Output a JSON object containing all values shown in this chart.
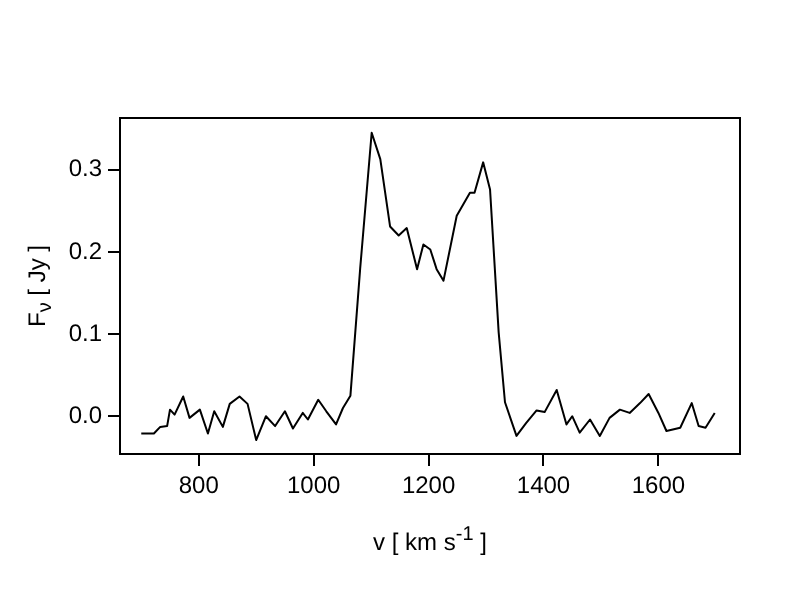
{
  "chart_data": {
    "type": "line",
    "xlabel": "v [ km s$^{-1}$ ]",
    "ylabel": "F$_{ν}$ [ Jy ]",
    "x": [
      700,
      722,
      733,
      745,
      750,
      758,
      773,
      784,
      802,
      816,
      827,
      842,
      854,
      871,
      885,
      900,
      917,
      933,
      950,
      964,
      981,
      990,
      1008,
      1022,
      1039,
      1051,
      1064,
      1081,
      1101,
      1116,
      1133,
      1148,
      1162,
      1180,
      1191,
      1203,
      1214,
      1226,
      1249,
      1272,
      1280,
      1295,
      1307,
      1322,
      1333,
      1353,
      1370,
      1388,
      1402,
      1423,
      1440,
      1450,
      1463,
      1481,
      1498,
      1515,
      1533,
      1550,
      1568,
      1583,
      1600,
      1614,
      1638,
      1658,
      1670,
      1682,
      1698
    ],
    "series": [
      {
        "color": "#000000",
        "values": [
          -0.021,
          -0.021,
          -0.013,
          -0.012,
          0.008,
          0.002,
          0.024,
          -0.002,
          0.008,
          -0.021,
          0.006,
          -0.013,
          0.015,
          0.024,
          0.015,
          -0.029,
          0.0,
          -0.012,
          0.006,
          -0.015,
          0.004,
          -0.004,
          0.02,
          0.006,
          -0.01,
          0.01,
          0.025,
          0.18,
          0.345,
          0.313,
          0.231,
          0.22,
          0.229,
          0.179,
          0.209,
          0.203,
          0.179,
          0.165,
          0.244,
          0.272,
          0.272,
          0.309,
          0.276,
          0.102,
          0.017,
          -0.024,
          -0.008,
          0.007,
          0.005,
          0.032,
          -0.01,
          0.0,
          -0.02,
          -0.004,
          -0.024,
          -0.002,
          0.008,
          0.004,
          0.016,
          0.027,
          0.004,
          -0.018,
          -0.014,
          0.016,
          -0.012,
          -0.014,
          0.004
        ]
      }
    ],
    "xlim": [
      663,
      1742
    ],
    "xticks": [
      800,
      1000,
      1200,
      1400,
      1600
    ],
    "ylim": [
      -0.046,
      0.363
    ],
    "yticks": [
      {
        "value": 0,
        "label": "0.0"
      },
      0.1,
      0.2,
      0.3
    ],
    "grid": false,
    "legend": false,
    "marker": "none",
    "line_style": "solid"
  }
}
